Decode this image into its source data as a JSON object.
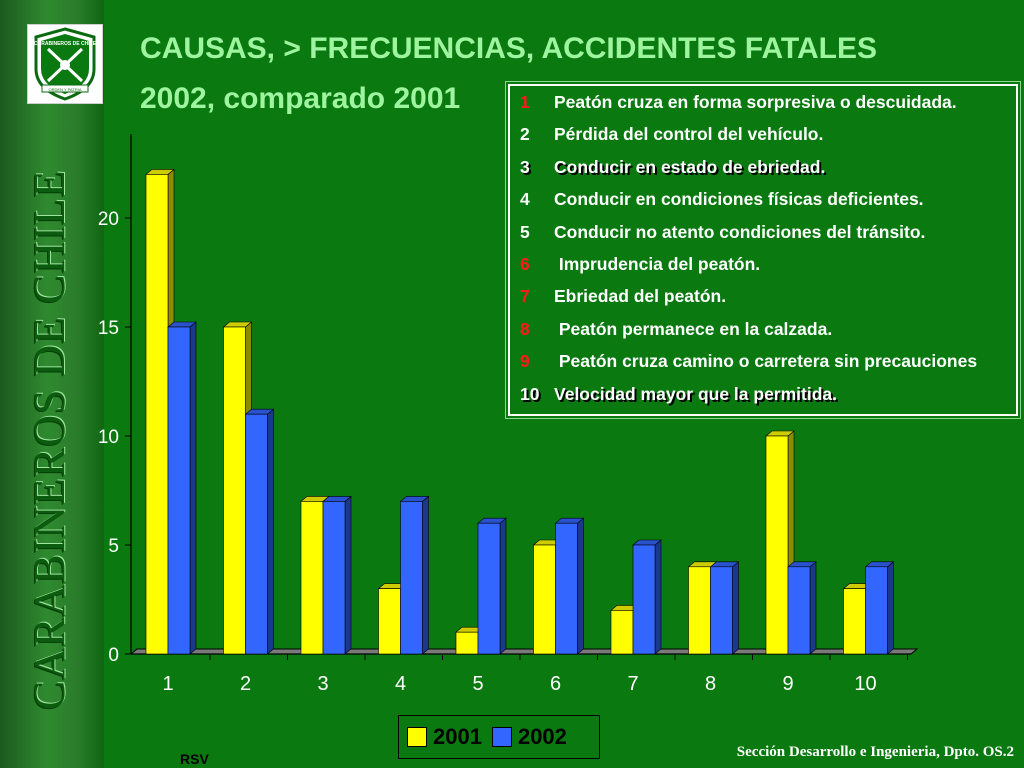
{
  "sidebar": {
    "vertical_text": "CARABINEROS DE CHILE",
    "logo": {
      "top_text": "CARABINEROS DE CHILE",
      "bottom_text": "ORDEN Y PATRIA"
    }
  },
  "title": {
    "line1": "CAUSAS, > FRECUENCIAS, ACCIDENTES FATALES",
    "line2": "2002, comparado 2001"
  },
  "causes": [
    {
      "num": "1",
      "text": "Peatón cruza en forma sorpresiva o descuidada.",
      "num_color": "#ff1a1a",
      "shadow": false
    },
    {
      "num": "2",
      "text": "Pérdida del control del vehículo.",
      "num_color": "#ffffff",
      "shadow": false
    },
    {
      "num": "3",
      "text": "Conducir en estado de ebriedad.",
      "num_color": "#ffffff",
      "shadow": true
    },
    {
      "num": "4",
      "text": "Conducir en condiciones físicas deficientes.",
      "num_color": "#ffffff",
      "shadow": false
    },
    {
      "num": "5",
      "text": "Conducir no atento condiciones del  tránsito.",
      "num_color": "#ffffff",
      "shadow": false
    },
    {
      "num": "6",
      "text": " Imprudencia del peatón.",
      "num_color": "#ff1a1a",
      "shadow": false
    },
    {
      "num": "7",
      "text": "Ebriedad del peatón.",
      "num_color": "#ff1a1a",
      "shadow": false
    },
    {
      "num": "8",
      "text": " Peatón permanece en la calzada.",
      "num_color": "#ff1a1a",
      "shadow": false
    },
    {
      "num": "9",
      "text": " Peatón cruza camino o carretera sin precauciones",
      "num_color": "#ff1a1a",
      "shadow": false
    },
    {
      "num": "10",
      "text": "Velocidad mayor que la permitida.",
      "num_color": "#ffffff",
      "shadow": true
    }
  ],
  "chart_data": {
    "type": "bar",
    "categories": [
      "1",
      "2",
      "3",
      "4",
      "5",
      "6",
      "7",
      "8",
      "9",
      "10"
    ],
    "series": [
      {
        "name": "2001",
        "values": [
          22,
          15,
          7,
          3,
          1,
          5,
          2,
          4,
          10,
          3
        ],
        "color": "#ffff00"
      },
      {
        "name": "2002",
        "values": [
          15,
          11,
          7,
          7,
          6,
          6,
          5,
          4,
          4,
          4
        ],
        "color": "#3366ff"
      }
    ],
    "title": "",
    "xlabel": "",
    "ylabel": "",
    "ylim": [
      0,
      24
    ],
    "yticks": [
      0,
      5,
      10,
      15,
      20
    ],
    "grid": false,
    "legend_position": "bottom-center",
    "style": "3d"
  },
  "footer": {
    "credit": "Sección Desarrollo e Ingenieria, Dpto. OS.2",
    "initials": "RSV"
  }
}
